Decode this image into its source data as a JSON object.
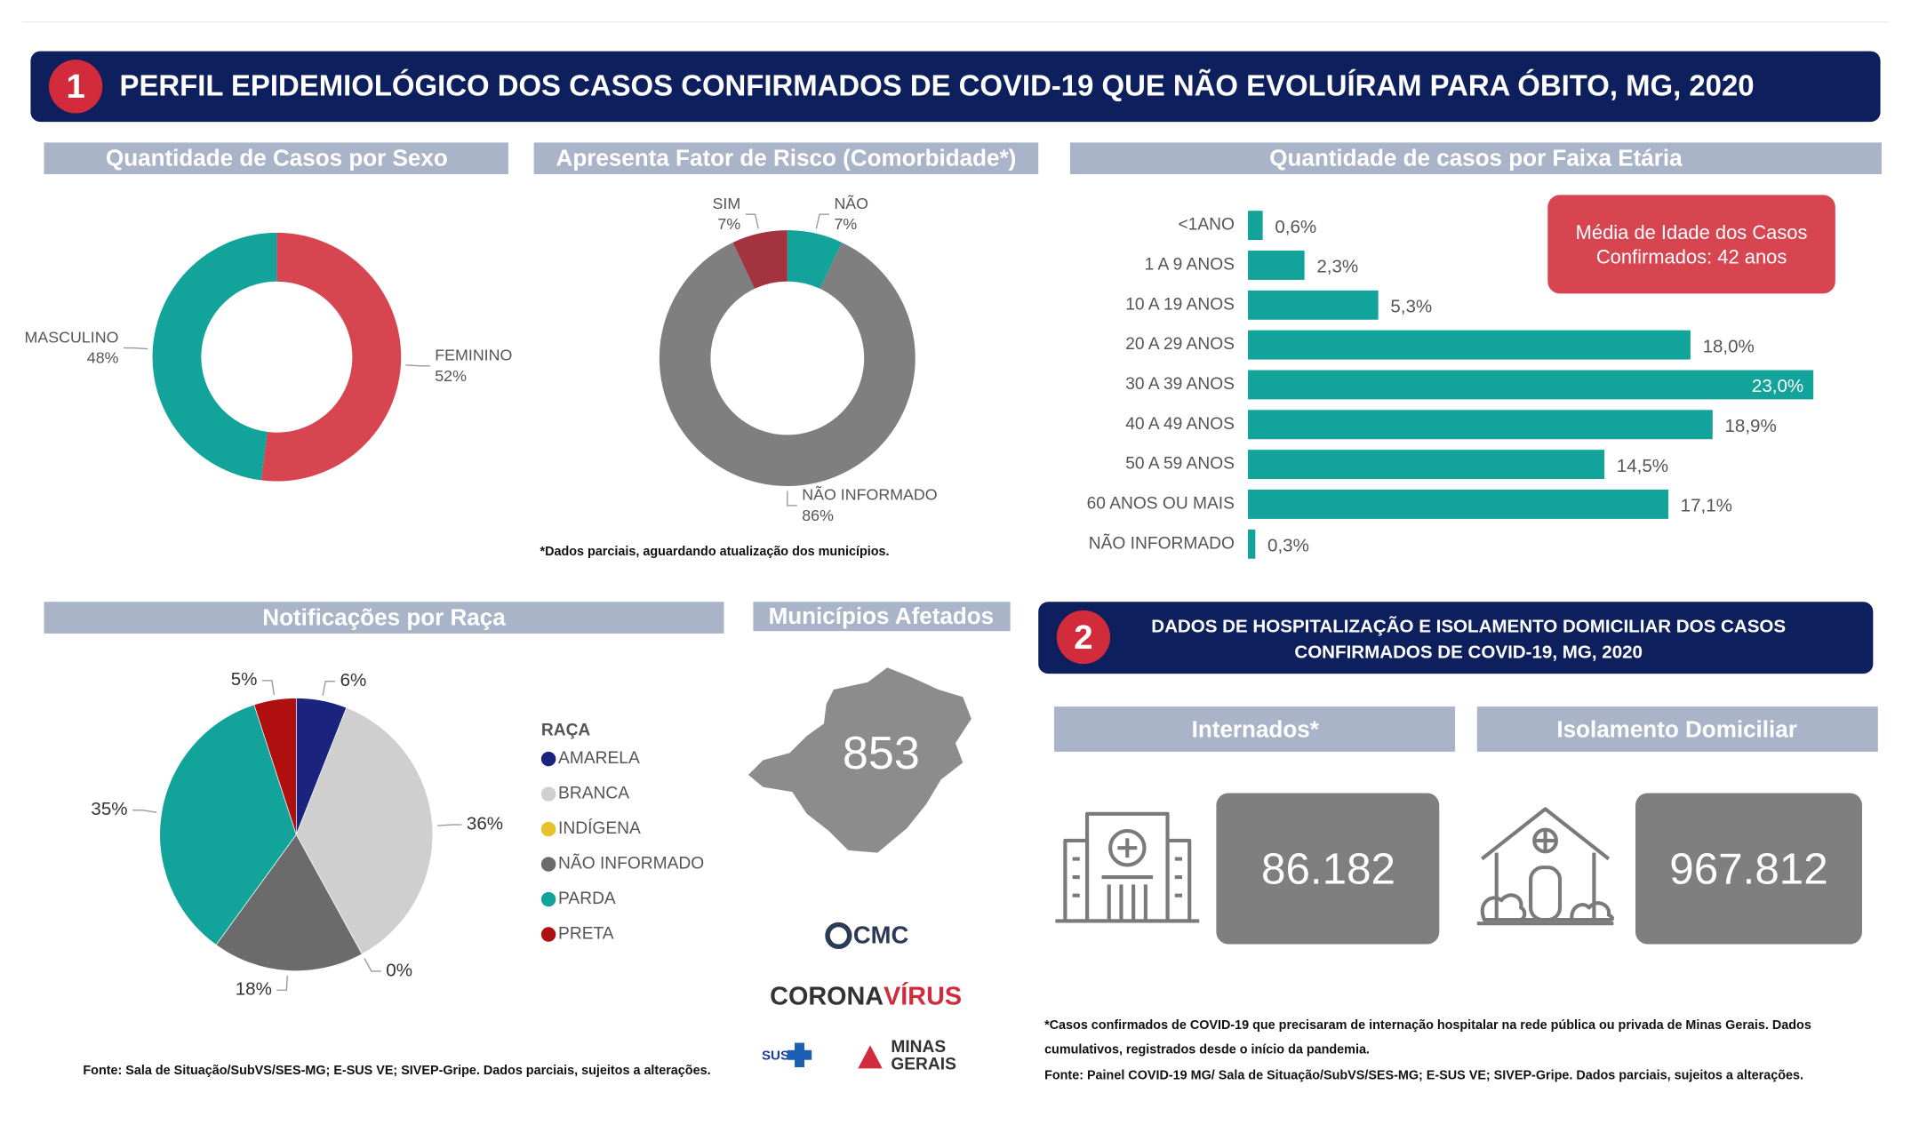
{
  "header": {
    "number": "1",
    "title": "PERFIL EPIDEMIOLÓGICO DOS CASOS CONFIRMADOS DE COVID-19 QUE NÃO EVOLUÍRAM PARA ÓBITO, MG, 2020"
  },
  "chart_data": [
    {
      "type": "donut",
      "title": "Quantidade de Casos por Sexo",
      "categories": [
        "FEMININO",
        "MASCULINO"
      ],
      "values": [
        52,
        48
      ],
      "value_labels": [
        "52%",
        "48%"
      ],
      "colors": [
        "#d64550",
        "#12a39a"
      ]
    },
    {
      "type": "donut",
      "title": "Apresenta Fator de Risco (Comorbidade*)",
      "categories": [
        "NÃO",
        "NÃO INFORMADO",
        "SIM"
      ],
      "values": [
        7,
        86,
        7
      ],
      "value_labels": [
        "7%",
        "86%",
        "7%"
      ],
      "colors": [
        "#12a39a",
        "#7f7f7f",
        "#a3343f"
      ],
      "footnote": "*Dados parciais, aguardando atualização dos municípios."
    },
    {
      "type": "bar",
      "orientation": "horizontal",
      "title": "Quantidade de casos por Faixa Etária",
      "categories": [
        "<1ANO",
        "1 A 9 ANOS",
        "10 A 19 ANOS",
        "20 A 29 ANOS",
        "30 A 39 ANOS",
        "40 A 49 ANOS",
        "50 A 59 ANOS",
        "60 ANOS OU MAIS",
        "NÃO INFORMADO"
      ],
      "values": [
        0.6,
        2.3,
        5.3,
        18.0,
        23.0,
        18.9,
        14.5,
        17.1,
        0.3
      ],
      "value_labels": [
        "0,6%",
        "2,3%",
        "5,3%",
        "18,0%",
        "23,0%",
        "18,9%",
        "14,5%",
        "17,1%",
        "0,3%"
      ],
      "color": "#12a39a",
      "annotation": [
        "Média de Idade dos Casos",
        "Confirmados: 42 anos"
      ]
    },
    {
      "type": "pie",
      "title": "Notificações por Raça",
      "legend_title": "RAÇA",
      "categories": [
        "AMARELA",
        "BRANCA",
        "INDÍGENA",
        "NÃO INFORMADO",
        "PARDA",
        "PRETA"
      ],
      "values": [
        6,
        36,
        0,
        18,
        35,
        5
      ],
      "value_labels": [
        "6%",
        "36%",
        "0%",
        "18%",
        "35%",
        "5%"
      ],
      "colors": [
        "#1a237e",
        "#cfcfcf",
        "#e6c229",
        "#6b6b6b",
        "#12a39a",
        "#b01010"
      ]
    }
  ],
  "municipios": {
    "title": "Municípios Afetados",
    "value": "853"
  },
  "section2": {
    "number": "2",
    "title": [
      "DADOS DE HOSPITALIZAÇÃO E ISOLAMENTO DOMICILIAR DOS CASOS",
      "CONFIRMADOS DE COVID-19, MG, 2020"
    ]
  },
  "cards": [
    {
      "title": "Internados*",
      "value": "86.182"
    },
    {
      "title": "Isolamento Domiciliar",
      "value": "967.812"
    }
  ],
  "footnote_right": [
    "*Casos confirmados de COVID-19 que precisaram de internação hospitalar na rede pública ou privada de Minas Gerais. Dados",
    "cumulativos, registrados desde o início da pandemia.",
    "Fonte: Painel COVID-19 MG/ Sala de Situação/SubVS/SES-MG; E-SUS VE; SIVEP-Gripe. Dados parciais, sujeitos a alterações."
  ],
  "source_left": "Fonte: Sala de Situação/SubVS/SES-MG; E-SUS VE; SIVEP-Gripe. Dados parciais, sujeitos a alterações.",
  "logos": {
    "cmc": "CMC",
    "corona": "CORONA",
    "virus": "VÍRUS",
    "sus": "SUS",
    "minas": [
      "MINAS",
      "GERAIS"
    ]
  }
}
